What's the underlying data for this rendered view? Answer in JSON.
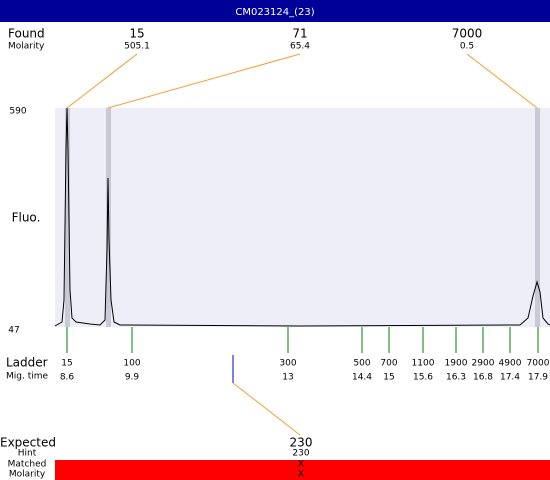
{
  "header": {
    "title": "CM023124_(23)"
  },
  "found": {
    "label": "Found",
    "sublabel": "Molarity",
    "peaks": [
      {
        "size": 15,
        "molarity": 505.1
      },
      {
        "size": 71,
        "molarity": 65.4
      },
      {
        "size": 7000,
        "molarity": 0.5
      }
    ]
  },
  "axis": {
    "label": "Fluo.",
    "max": 590,
    "min": 47
  },
  "ladder": {
    "label": "Ladder",
    "sublabel": "Mig. time",
    "markers": [
      {
        "size": 15,
        "time": 8.6
      },
      {
        "size": 100,
        "time": 9.9
      },
      {
        "size": 300,
        "time": 13
      },
      {
        "size": 500,
        "time": 14.4
      },
      {
        "size": 700,
        "time": 15
      },
      {
        "size": 1100,
        "time": 15.6
      },
      {
        "size": 1900,
        "time": 16.3
      },
      {
        "size": 2900,
        "time": 16.8
      },
      {
        "size": 4900,
        "time": 17.4
      },
      {
        "size": 7000,
        "time": 17.9
      }
    ]
  },
  "expected": {
    "label": "Expected",
    "value": 230,
    "rows": [
      {
        "label": "Hint",
        "value": 230
      },
      {
        "label": "Matched",
        "value": "X"
      },
      {
        "label": "Molarity",
        "value": "X"
      }
    ]
  }
}
